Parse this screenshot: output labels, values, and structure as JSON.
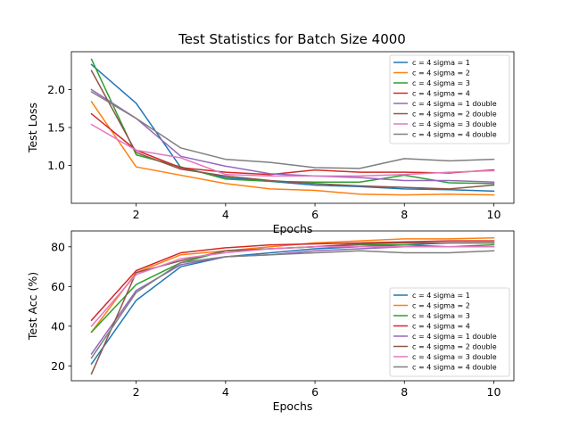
{
  "chart_data": [
    {
      "type": "line",
      "title": "Test Statistics for Batch Size 4000",
      "xlabel": "Epochs",
      "ylabel": "Test Loss",
      "x": [
        1,
        2,
        3,
        4,
        5,
        6,
        7,
        8,
        9,
        10
      ],
      "xlim": [
        0.55,
        10.45
      ],
      "ylim": [
        0.5,
        2.5
      ],
      "xticks": [
        2,
        4,
        6,
        8,
        10
      ],
      "yticks": [
        1.0,
        1.5,
        2.0
      ],
      "ytick_labels": [
        "1.0",
        "1.5",
        "2.0"
      ],
      "legend_position": "top-right",
      "grid": false,
      "series": [
        {
          "name": "c = 4 sigma = 1",
          "color": "#1f77b4",
          "values": [
            2.33,
            1.82,
            0.97,
            0.84,
            0.79,
            0.74,
            0.72,
            0.69,
            0.68,
            0.66
          ]
        },
        {
          "name": "c = 4 sigma = 2",
          "color": "#ff7f0e",
          "values": [
            1.84,
            0.98,
            0.87,
            0.76,
            0.69,
            0.67,
            0.62,
            0.61,
            0.62,
            0.61
          ]
        },
        {
          "name": "c = 4 sigma = 3",
          "color": "#2ca02c",
          "values": [
            2.4,
            1.14,
            0.98,
            0.82,
            0.79,
            0.78,
            0.78,
            0.87,
            0.77,
            0.76
          ]
        },
        {
          "name": "c = 4 sigma = 4",
          "color": "#d62728",
          "values": [
            1.68,
            1.2,
            0.97,
            0.91,
            0.88,
            0.94,
            0.91,
            0.91,
            0.9,
            0.94
          ]
        },
        {
          "name": "c = 4 sigma = 1 double",
          "color": "#9467bd",
          "values": [
            2.0,
            1.62,
            1.12,
            0.99,
            0.89,
            0.86,
            0.84,
            0.8,
            0.8,
            0.78
          ]
        },
        {
          "name": "c = 4 sigma = 2 double",
          "color": "#8c564b",
          "values": [
            2.25,
            1.17,
            0.95,
            0.86,
            0.8,
            0.76,
            0.73,
            0.71,
            0.69,
            0.74
          ]
        },
        {
          "name": "c = 4 sigma = 3 double",
          "color": "#e377c2",
          "values": [
            1.54,
            1.2,
            1.1,
            0.88,
            0.86,
            0.86,
            0.86,
            0.88,
            0.91,
            0.93
          ]
        },
        {
          "name": "c = 4 sigma = 4 double",
          "color": "#7f7f7f",
          "values": [
            1.97,
            1.62,
            1.23,
            1.08,
            1.04,
            0.97,
            0.96,
            1.09,
            1.06,
            1.08
          ]
        }
      ]
    },
    {
      "type": "line",
      "title": "",
      "xlabel": "Epochs",
      "ylabel": "Test Acc (%)",
      "x": [
        1,
        2,
        3,
        4,
        5,
        6,
        7,
        8,
        9,
        10
      ],
      "xlim": [
        0.55,
        10.45
      ],
      "ylim": [
        12.5,
        88.0
      ],
      "xticks": [
        2,
        4,
        6,
        8,
        10
      ],
      "yticks": [
        20,
        40,
        60,
        80
      ],
      "ytick_labels": [
        "20",
        "40",
        "60",
        "80"
      ],
      "legend_position": "lower-right",
      "grid": false,
      "series": [
        {
          "name": "c = 4 sigma = 1",
          "color": "#1f77b4",
          "values": [
            21,
            53,
            70,
            75,
            77,
            79,
            80,
            81,
            82,
            82
          ]
        },
        {
          "name": "c = 4 sigma = 2",
          "color": "#ff7f0e",
          "values": [
            37,
            67,
            76,
            78,
            80,
            82,
            83,
            84,
            84,
            84.5
          ]
        },
        {
          "name": "c = 4 sigma = 3",
          "color": "#2ca02c",
          "values": [
            37,
            61,
            72,
            78,
            79,
            80,
            81,
            81,
            80,
            81
          ]
        },
        {
          "name": "c = 4 sigma = 4",
          "color": "#d62728",
          "values": [
            43,
            68,
            77,
            79.5,
            81,
            81.5,
            82,
            82.5,
            83,
            83
          ]
        },
        {
          "name": "c = 4 sigma = 1 double",
          "color": "#9467bd",
          "values": [
            26,
            58,
            71,
            75,
            76,
            78,
            79,
            80,
            80,
            80
          ]
        },
        {
          "name": "c = 4 sigma = 2 double",
          "color": "#8c564b",
          "values": [
            16,
            67,
            73,
            78,
            79,
            80,
            81.5,
            82,
            82,
            82
          ]
        },
        {
          "name": "c = 4 sigma = 3 double",
          "color": "#e377c2",
          "values": [
            40,
            66,
            74,
            77,
            79,
            80,
            80,
            80,
            80,
            80
          ]
        },
        {
          "name": "c = 4 sigma = 4 double",
          "color": "#7f7f7f",
          "values": [
            24,
            57,
            72,
            75,
            76,
            77,
            78,
            77,
            77,
            78
          ]
        }
      ]
    }
  ]
}
